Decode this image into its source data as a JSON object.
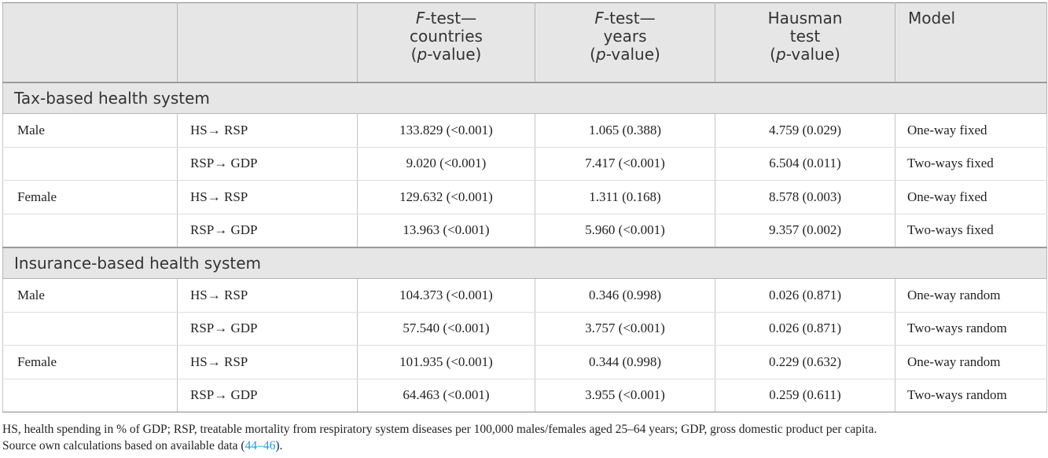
{
  "header": {
    "col1": "",
    "col2": "",
    "f_countries": {
      "italic": "F",
      "l1": "-test—",
      "l2": "countries",
      "l3_open": "(",
      "l3_italic": "p",
      "l3_rest": "-value)"
    },
    "f_years": {
      "italic": "F",
      "l1": "-test—",
      "l2": "years",
      "l3_open": "(",
      "l3_italic": "p",
      "l3_rest": "-value)"
    },
    "hausman": {
      "l1": "Hausman",
      "l2": "test",
      "l3_open": "(",
      "l3_italic": "p",
      "l3_rest": "-value)"
    },
    "model": "Model"
  },
  "sections": [
    {
      "title": "Tax-based health system",
      "rows": [
        {
          "group": "Male",
          "eq": "HS→ RSP",
          "f_countries": "133.829 (<0.001)",
          "f_years": "1.065 (0.388)",
          "hausman": "4.759 (0.029)",
          "model": "One-way fixed"
        },
        {
          "group": "",
          "eq": "RSP→ GDP",
          "f_countries": "9.020 (<0.001)",
          "f_years": "7.417 (<0.001)",
          "hausman": "6.504 (0.011)",
          "model": "Two-ways fixed"
        },
        {
          "group": "Female",
          "eq": "HS→ RSP",
          "f_countries": "129.632 (<0.001)",
          "f_years": "1.311 (0.168)",
          "hausman": "8.578 (0.003)",
          "model": "One-way fixed"
        },
        {
          "group": "",
          "eq": "RSP→ GDP",
          "f_countries": "13.963 (<0.001)",
          "f_years": "5.960 (<0.001)",
          "hausman": "9.357 (0.002)",
          "model": "Two-ways fixed"
        }
      ]
    },
    {
      "title": "Insurance-based health system",
      "rows": [
        {
          "group": "Male",
          "eq": "HS→ RSP",
          "f_countries": "104.373 (<0.001)",
          "f_years": "0.346 (0.998)",
          "hausman": "0.026 (0.871)",
          "model": "One-way random"
        },
        {
          "group": "",
          "eq": "RSP→ GDP",
          "f_countries": "57.540 (<0.001)",
          "f_years": "3.757 (<0.001)",
          "hausman": "0.026 (0.871)",
          "model": "Two-ways random"
        },
        {
          "group": "Female",
          "eq": "HS→ RSP",
          "f_countries": "101.935 (<0.001)",
          "f_years": "0.344 (0.998)",
          "hausman": "0.229 (0.632)",
          "model": "One-way random"
        },
        {
          "group": "",
          "eq": "RSP→ GDP",
          "f_countries": "64.463 (<0.001)",
          "f_years": "3.955 (<0.001)",
          "hausman": "0.259 (0.611)",
          "model": "Two-ways random"
        }
      ]
    }
  ],
  "footnote": {
    "abbrev": "HS, health spending in % of GDP; RSP, treatable mortality from respiratory system diseases per 100,000 males/females aged 25–64 years; GDP, gross domestic product per capita.",
    "source_pre": "Source own calculations based on available data (",
    "source_ref": "44–46",
    "source_post": ")."
  }
}
